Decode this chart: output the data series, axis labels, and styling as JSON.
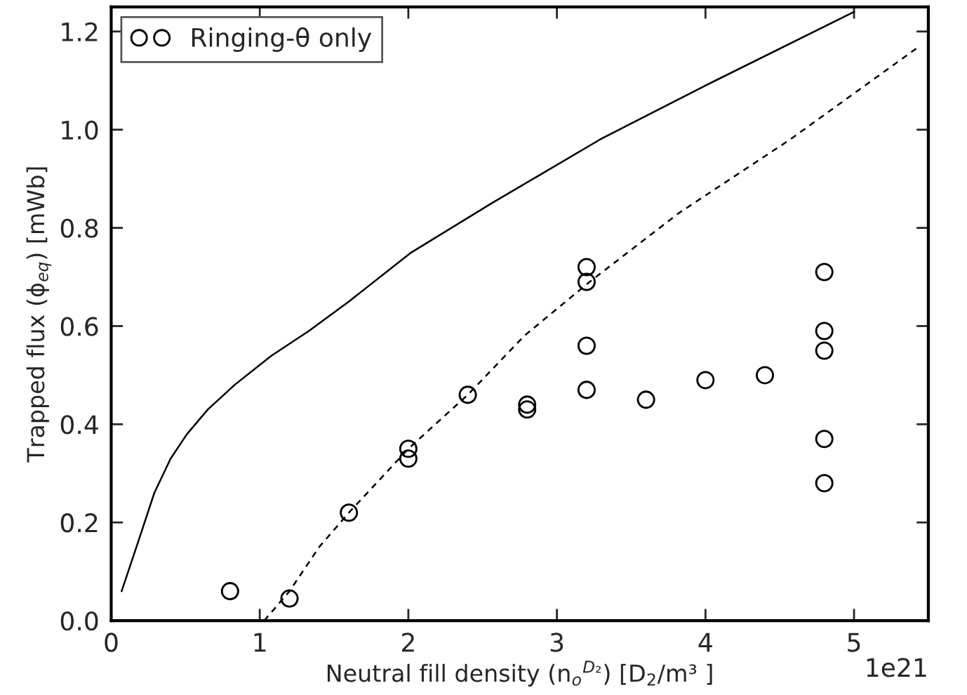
{
  "chart_data": {
    "type": "scatter",
    "xlabel": "Neutral fill density (n$_{o}$$^{D₂}$) [D$_{2}$/m³ ]",
    "ylabel": "Trapped flux (ϕ$_{eq}$) [mWb]",
    "xlim": [
      0,
      5.5
    ],
    "ylim": [
      0,
      1.25
    ],
    "xticks": [
      0,
      1,
      2,
      3,
      4,
      5
    ],
    "yticks": [
      {
        "value": 0,
        "label": "0.0"
      },
      0.2,
      0.4,
      0.6,
      0.8,
      {
        "value": 1,
        "label": "1.0"
      },
      1.2
    ],
    "annotations": [
      "1e21"
    ],
    "legend": "top left",
    "grid": false,
    "series": [
      {
        "name": "Ringing-θ only",
        "color": "#000000",
        "marker": "circle",
        "x": [
          0.8,
          1.2,
          1.6,
          2.0,
          2.0,
          2.4,
          2.8,
          2.8,
          3.2,
          3.2,
          3.2,
          3.2,
          3.6,
          4.0,
          4.4,
          4.8,
          4.8,
          4.8,
          4.8,
          4.8
        ],
        "values": [
          0.06,
          0.045,
          0.22,
          0.35,
          0.33,
          0.46,
          0.44,
          0.43,
          0.72,
          0.69,
          0.56,
          0.47,
          0.45,
          0.49,
          0.5,
          0.71,
          0.59,
          0.55,
          0.37,
          0.28
        ]
      },
      {
        "type": "line",
        "color": "#000000",
        "line_style": "solid",
        "x": [
          0.07,
          0.17,
          0.29,
          0.4,
          0.51,
          0.65,
          0.83,
          1.08,
          1.33,
          1.6,
          2.02,
          2.56,
          3.29,
          4.0,
          5.0
        ],
        "values": [
          0.06,
          0.15,
          0.26,
          0.33,
          0.38,
          0.43,
          0.48,
          0.54,
          0.59,
          0.65,
          0.75,
          0.85,
          0.98,
          1.09,
          1.24
        ]
      },
      {
        "type": "line",
        "color": "#000000",
        "line_style": "dashed",
        "x": [
          1.03,
          1.2,
          1.4,
          1.6,
          2.0,
          2.4,
          2.78,
          3.22,
          3.82,
          4.57,
          5.44
        ],
        "values": [
          0.0,
          0.06,
          0.15,
          0.22,
          0.35,
          0.46,
          0.58,
          0.69,
          0.83,
          0.98,
          1.17
        ]
      }
    ]
  }
}
